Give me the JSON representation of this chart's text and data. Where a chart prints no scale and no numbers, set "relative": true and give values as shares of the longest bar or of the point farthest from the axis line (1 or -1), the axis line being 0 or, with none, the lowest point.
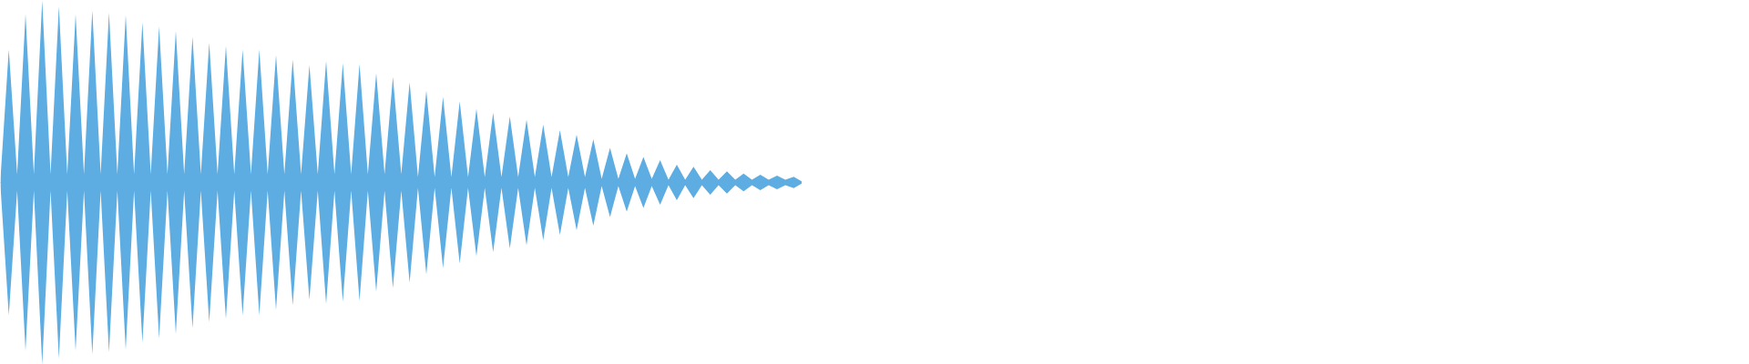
{
  "chart_data": {
    "type": "area",
    "relative": true,
    "categories": [
      null,
      null,
      null,
      null,
      null,
      null,
      null,
      null,
      null,
      null,
      null,
      null,
      null,
      null,
      null,
      null,
      null,
      null,
      null,
      null,
      null,
      null,
      null,
      null,
      null,
      null,
      null,
      null,
      null,
      null,
      null,
      null,
      null,
      null,
      null,
      null,
      null,
      null,
      null,
      null,
      null,
      null,
      null,
      null,
      null,
      null,
      null,
      null,
      null,
      null,
      null,
      null,
      null,
      null,
      null,
      null,
      null,
      null,
      null,
      null,
      null,
      null,
      null,
      null,
      null,
      null,
      null,
      null,
      null,
      null,
      null,
      null,
      null,
      null,
      null,
      null,
      null,
      null,
      null,
      null,
      null,
      null,
      null,
      null,
      null,
      null,
      null,
      null,
      null,
      null,
      null,
      null,
      null,
      null,
      null,
      null,
      null
    ],
    "series": [
      {
        "color": "#5dade2",
        "values": [
          0.02,
          0.73,
          0.045,
          0.925,
          0.045,
          1.0,
          0.045,
          0.967,
          0.045,
          0.925,
          0.045,
          0.945,
          0.045,
          0.933,
          0.045,
          0.92,
          0.045,
          0.88,
          0.045,
          0.858,
          0.045,
          0.833,
          0.045,
          0.8,
          0.045,
          0.767,
          0.045,
          0.75,
          0.045,
          0.73,
          0.045,
          0.73,
          0.045,
          0.7,
          0.045,
          0.675,
          0.045,
          0.645,
          0.045,
          0.667,
          0.045,
          0.655,
          0.045,
          0.65,
          0.045,
          0.6,
          0.045,
          0.58,
          0.045,
          0.55,
          0.03,
          0.505,
          0.03,
          0.47,
          0.03,
          0.445,
          0.03,
          0.405,
          0.03,
          0.383,
          0.03,
          0.362,
          0.03,
          0.345,
          0.03,
          0.317,
          0.03,
          0.288,
          0.03,
          0.263,
          0.03,
          0.238,
          0.02,
          0.19,
          0.02,
          0.16,
          0.02,
          0.14,
          0.02,
          0.123,
          0.015,
          0.098,
          0.015,
          0.086,
          0.015,
          0.067,
          0.015,
          0.061,
          0.015,
          0.049,
          0.015,
          0.043,
          0.015,
          0.037,
          0.015,
          0.031,
          0.005
        ]
      },
      {
        "color": "#5dade2",
        "values": [
          -0.02,
          -0.73,
          -0.045,
          -0.925,
          -0.045,
          -1.0,
          -0.045,
          -0.967,
          -0.045,
          -0.925,
          -0.045,
          -0.945,
          -0.045,
          -0.933,
          -0.045,
          -0.92,
          -0.045,
          -0.88,
          -0.045,
          -0.858,
          -0.045,
          -0.833,
          -0.045,
          -0.8,
          -0.045,
          -0.767,
          -0.045,
          -0.75,
          -0.045,
          -0.73,
          -0.045,
          -0.73,
          -0.045,
          -0.7,
          -0.045,
          -0.675,
          -0.045,
          -0.645,
          -0.045,
          -0.667,
          -0.045,
          -0.655,
          -0.045,
          -0.65,
          -0.045,
          -0.6,
          -0.045,
          -0.58,
          -0.045,
          -0.55,
          -0.03,
          -0.505,
          -0.03,
          -0.47,
          -0.03,
          -0.445,
          -0.03,
          -0.405,
          -0.03,
          -0.383,
          -0.03,
          -0.362,
          -0.03,
          -0.345,
          -0.03,
          -0.317,
          -0.03,
          -0.288,
          -0.03,
          -0.263,
          -0.03,
          -0.238,
          -0.02,
          -0.19,
          -0.02,
          -0.16,
          -0.02,
          -0.14,
          -0.02,
          -0.123,
          -0.015,
          -0.098,
          -0.015,
          -0.086,
          -0.015,
          -0.067,
          -0.015,
          -0.061,
          -0.015,
          -0.049,
          -0.015,
          -0.043,
          -0.015,
          -0.037,
          -0.015,
          -0.031,
          -0.005
        ]
      }
    ]
  }
}
